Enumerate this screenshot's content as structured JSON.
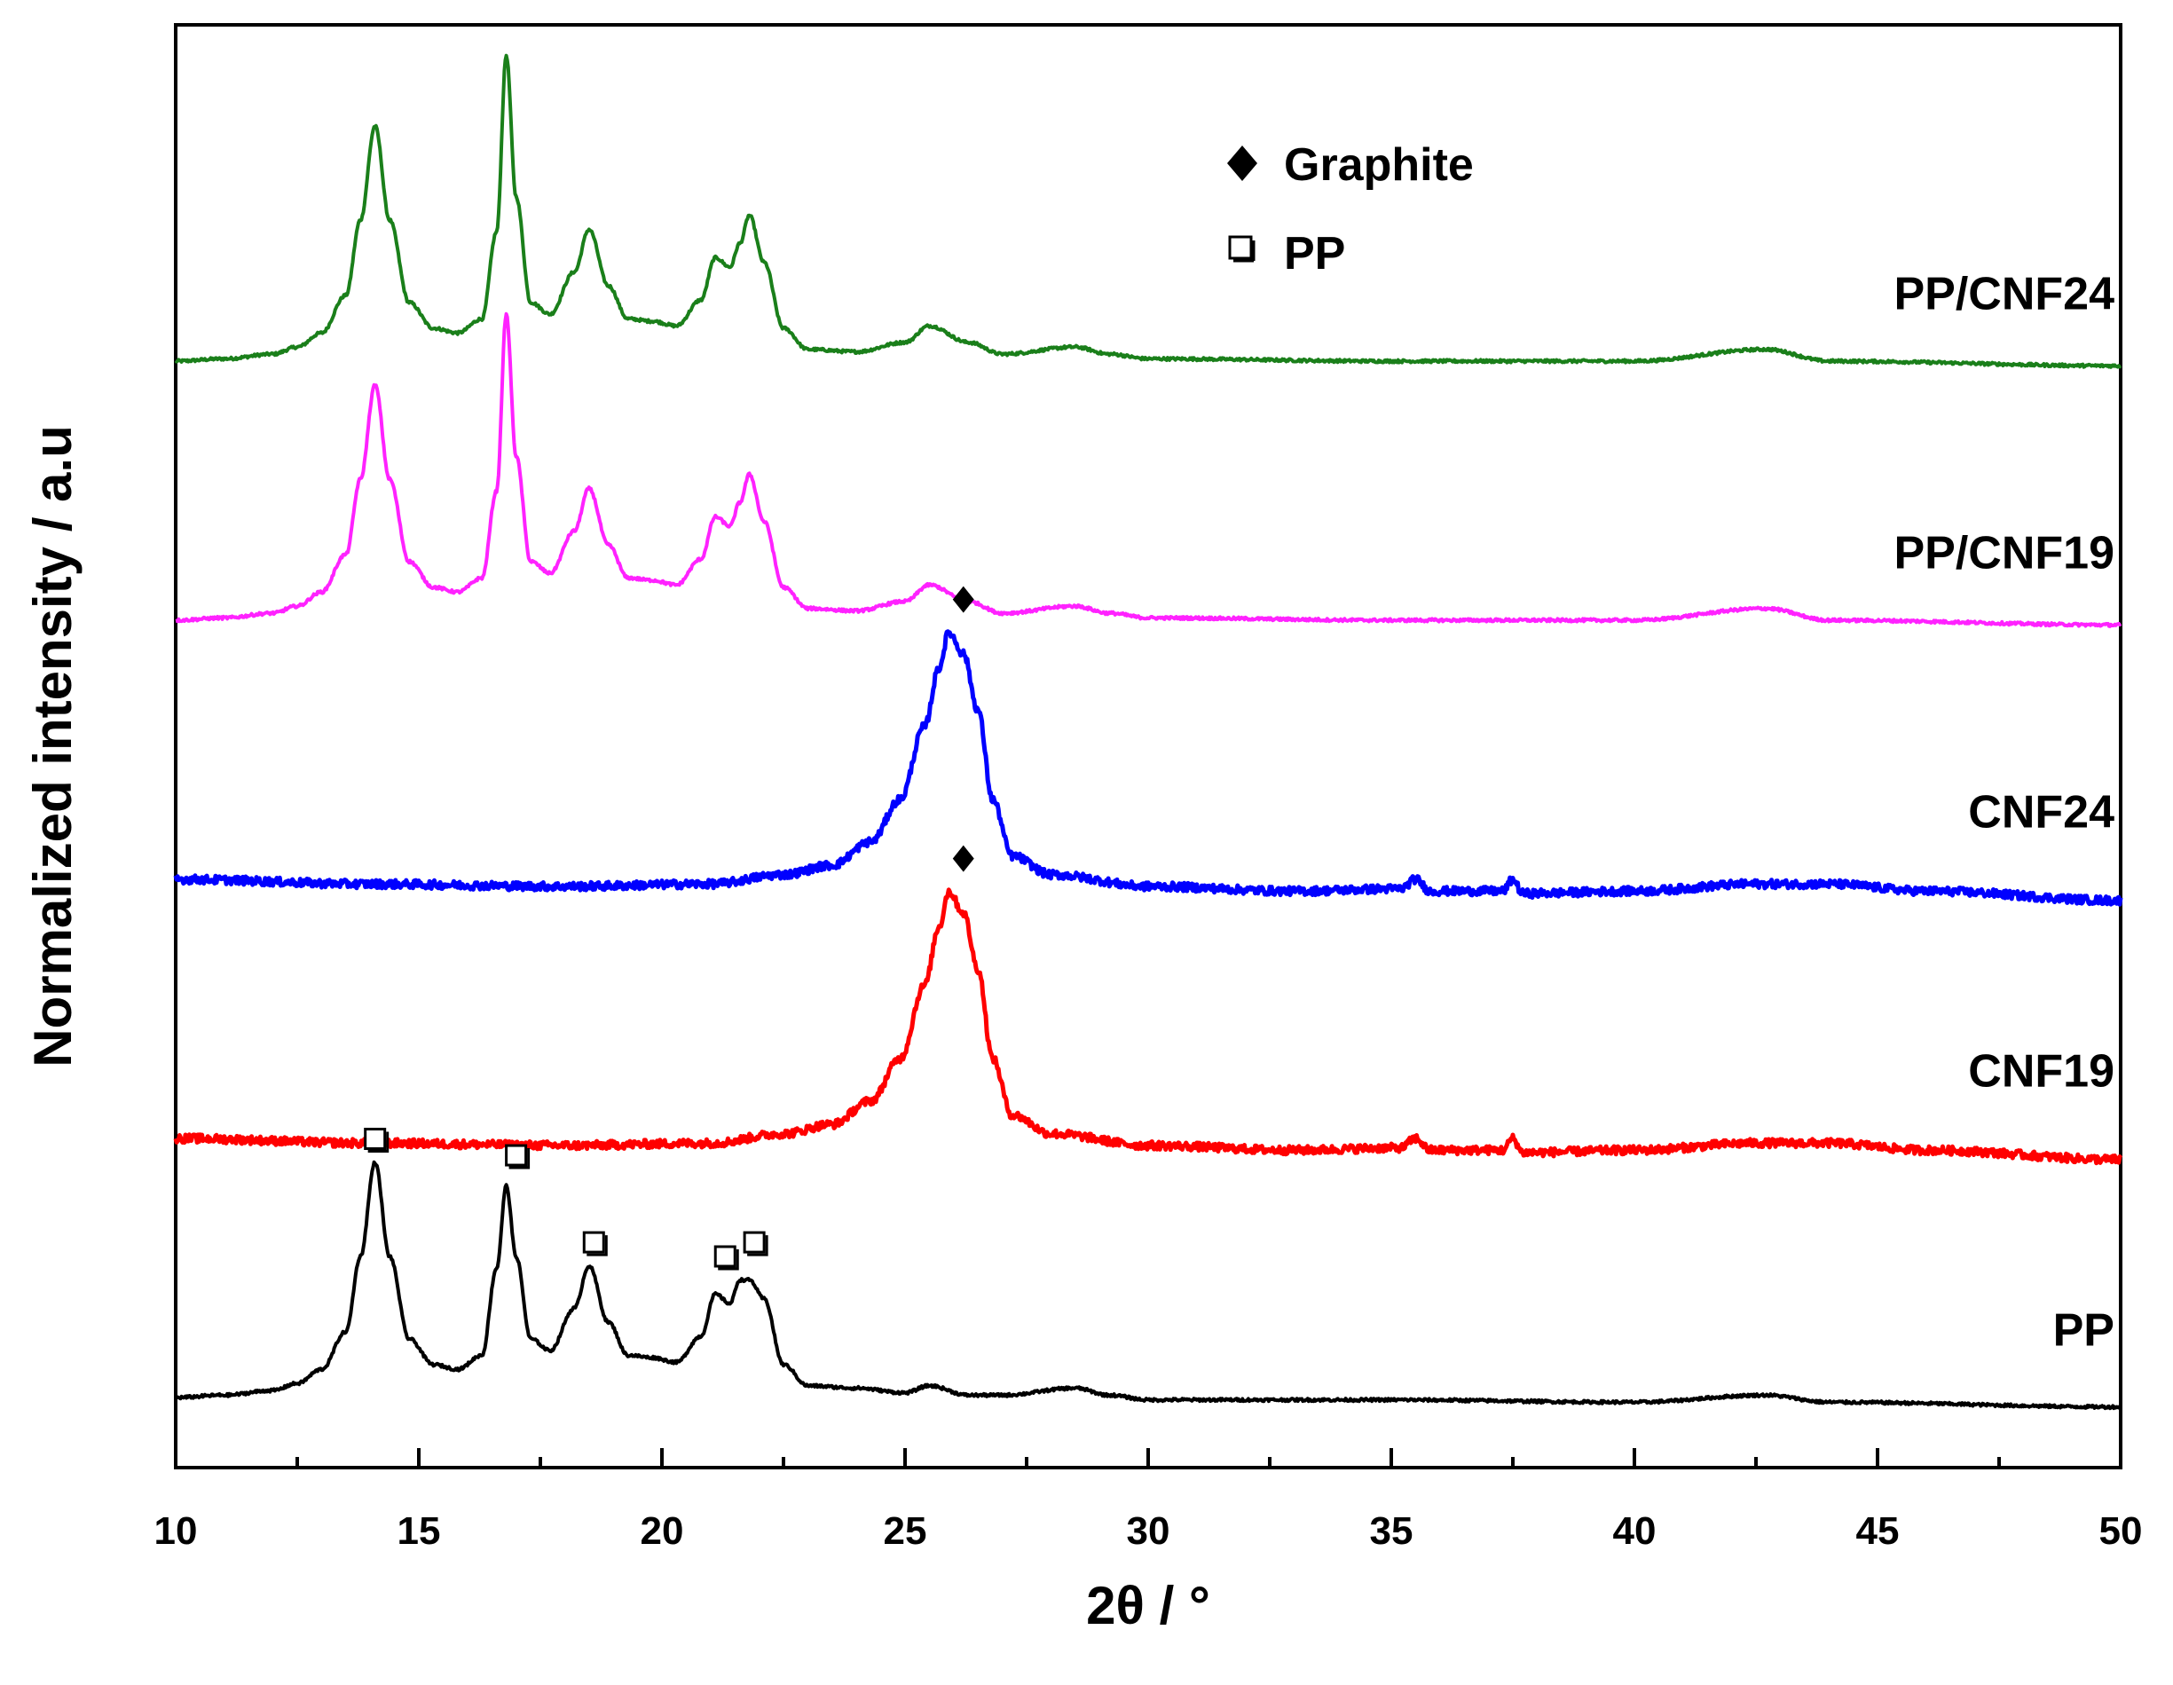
{
  "chart_data": {
    "type": "line",
    "title": "",
    "xlabel": "2θ / °",
    "ylabel": "Normalized intensity / a.u",
    "xlim": [
      10,
      50
    ],
    "xticks": [
      10,
      15,
      20,
      25,
      30,
      35,
      40,
      45,
      50
    ],
    "xtick_labels": [
      "10",
      "15",
      "20",
      "25",
      "30",
      "35",
      "40",
      "45",
      "50"
    ],
    "y_ticks_shown": false,
    "legend": {
      "placement": "top-center",
      "entries": [
        {
          "marker": "filled-diamond",
          "label": "Graphite"
        },
        {
          "marker": "open-square",
          "label": "PP"
        }
      ]
    },
    "series": [
      {
        "name": "PP/CNF24",
        "color": "#1a7f1a",
        "baseline_offset": 4.0,
        "points": [
          [
            10,
            0.0
          ],
          [
            11,
            0.01
          ],
          [
            12,
            0.03
          ],
          [
            12.5,
            0.06
          ],
          [
            13,
            0.12
          ],
          [
            13.5,
            0.28
          ],
          [
            13.8,
            0.6
          ],
          [
            14.1,
            1.0
          ],
          [
            14.4,
            0.6
          ],
          [
            14.8,
            0.25
          ],
          [
            15.3,
            0.14
          ],
          [
            15.8,
            0.12
          ],
          [
            16.3,
            0.18
          ],
          [
            16.6,
            0.55
          ],
          [
            16.8,
            1.3
          ],
          [
            17.0,
            0.7
          ],
          [
            17.3,
            0.25
          ],
          [
            17.7,
            0.2
          ],
          [
            18.2,
            0.38
          ],
          [
            18.5,
            0.56
          ],
          [
            18.9,
            0.32
          ],
          [
            19.3,
            0.18
          ],
          [
            19.8,
            0.17
          ],
          [
            20.3,
            0.15
          ],
          [
            20.8,
            0.26
          ],
          [
            21.1,
            0.44
          ],
          [
            21.4,
            0.4
          ],
          [
            21.6,
            0.5
          ],
          [
            21.8,
            0.62
          ],
          [
            22.1,
            0.42
          ],
          [
            22.5,
            0.14
          ],
          [
            23.0,
            0.05
          ],
          [
            24.0,
            0.04
          ],
          [
            25.0,
            0.08
          ],
          [
            25.5,
            0.15
          ],
          [
            26.3,
            0.08
          ],
          [
            27.0,
            0.03
          ],
          [
            28.5,
            0.06
          ],
          [
            29.2,
            0.03
          ],
          [
            30.0,
            0.01
          ],
          [
            35,
            0.0
          ],
          [
            40,
            0.0
          ],
          [
            42.7,
            0.05
          ],
          [
            44,
            0.0
          ],
          [
            50,
            -0.02
          ]
        ]
      },
      {
        "name": "PP/CNF19",
        "color": "#ff22ff",
        "baseline_offset": 3.0,
        "points": [
          [
            10,
            0.0
          ],
          [
            11,
            0.01
          ],
          [
            12,
            0.03
          ],
          [
            12.5,
            0.06
          ],
          [
            13,
            0.12
          ],
          [
            13.5,
            0.28
          ],
          [
            13.8,
            0.6
          ],
          [
            14.1,
            1.0
          ],
          [
            14.4,
            0.6
          ],
          [
            14.8,
            0.25
          ],
          [
            15.3,
            0.14
          ],
          [
            15.8,
            0.12
          ],
          [
            16.3,
            0.18
          ],
          [
            16.6,
            0.55
          ],
          [
            16.8,
            1.3
          ],
          [
            17.0,
            0.7
          ],
          [
            17.3,
            0.25
          ],
          [
            17.7,
            0.2
          ],
          [
            18.2,
            0.38
          ],
          [
            18.5,
            0.56
          ],
          [
            18.9,
            0.32
          ],
          [
            19.3,
            0.18
          ],
          [
            19.8,
            0.17
          ],
          [
            20.3,
            0.15
          ],
          [
            20.8,
            0.26
          ],
          [
            21.1,
            0.44
          ],
          [
            21.4,
            0.4
          ],
          [
            21.6,
            0.5
          ],
          [
            21.8,
            0.62
          ],
          [
            22.1,
            0.42
          ],
          [
            22.5,
            0.14
          ],
          [
            23.0,
            0.05
          ],
          [
            24.0,
            0.04
          ],
          [
            25.0,
            0.08
          ],
          [
            25.5,
            0.15
          ],
          [
            26.3,
            0.08
          ],
          [
            27.0,
            0.03
          ],
          [
            28.5,
            0.06
          ],
          [
            29.2,
            0.03
          ],
          [
            30.0,
            0.01
          ],
          [
            35,
            0.0
          ],
          [
            40,
            0.0
          ],
          [
            42.7,
            0.05
          ],
          [
            44,
            0.0
          ],
          [
            50,
            -0.02
          ]
        ]
      },
      {
        "name": "CNF24",
        "color": "#0000ff",
        "baseline_offset": 2.0,
        "points": [
          [
            10,
            0.0
          ],
          [
            14,
            -0.02
          ],
          [
            18,
            -0.03
          ],
          [
            21,
            -0.02
          ],
          [
            22.5,
            0.02
          ],
          [
            23.5,
            0.06
          ],
          [
            24.3,
            0.16
          ],
          [
            24.9,
            0.34
          ],
          [
            25.4,
            0.65
          ],
          [
            25.7,
            0.9
          ],
          [
            25.9,
            1.05
          ],
          [
            26.2,
            0.96
          ],
          [
            26.5,
            0.72
          ],
          [
            26.8,
            0.34
          ],
          [
            27.2,
            0.1
          ],
          [
            28.0,
            0.02
          ],
          [
            30,
            -0.03
          ],
          [
            33,
            -0.05
          ],
          [
            35.2,
            -0.04
          ],
          [
            35.5,
            0.0
          ],
          [
            35.8,
            -0.05
          ],
          [
            37.3,
            -0.05
          ],
          [
            37.5,
            0.0
          ],
          [
            37.7,
            -0.06
          ],
          [
            40,
            -0.05
          ],
          [
            42.5,
            -0.02
          ],
          [
            44,
            -0.02
          ],
          [
            46,
            -0.05
          ],
          [
            50,
            -0.09
          ]
        ]
      },
      {
        "name": "CNF19",
        "color": "#ff0000",
        "baseline_offset": 1.0,
        "points": [
          [
            10,
            0.0
          ],
          [
            14,
            -0.02
          ],
          [
            18,
            -0.03
          ],
          [
            21,
            -0.02
          ],
          [
            22.5,
            0.02
          ],
          [
            23.5,
            0.06
          ],
          [
            24.3,
            0.16
          ],
          [
            24.9,
            0.34
          ],
          [
            25.4,
            0.65
          ],
          [
            25.7,
            0.9
          ],
          [
            25.9,
            1.05
          ],
          [
            26.2,
            0.96
          ],
          [
            26.5,
            0.72
          ],
          [
            26.8,
            0.34
          ],
          [
            27.2,
            0.1
          ],
          [
            28.0,
            0.02
          ],
          [
            30,
            -0.03
          ],
          [
            33,
            -0.05
          ],
          [
            35.2,
            -0.04
          ],
          [
            35.5,
            0.0
          ],
          [
            35.8,
            -0.05
          ],
          [
            37.3,
            -0.05
          ],
          [
            37.5,
            0.0
          ],
          [
            37.7,
            -0.06
          ],
          [
            40,
            -0.05
          ],
          [
            42.5,
            -0.02
          ],
          [
            44,
            -0.02
          ],
          [
            46,
            -0.05
          ],
          [
            50,
            -0.09
          ]
        ]
      },
      {
        "name": "PP",
        "color": "#000000",
        "baseline_offset": 0.0,
        "points": [
          [
            10,
            0.0
          ],
          [
            11,
            0.01
          ],
          [
            12,
            0.03
          ],
          [
            12.5,
            0.06
          ],
          [
            13,
            0.12
          ],
          [
            13.5,
            0.28
          ],
          [
            13.8,
            0.6
          ],
          [
            14.1,
            1.0
          ],
          [
            14.4,
            0.6
          ],
          [
            14.8,
            0.25
          ],
          [
            15.3,
            0.14
          ],
          [
            15.8,
            0.12
          ],
          [
            16.3,
            0.18
          ],
          [
            16.6,
            0.55
          ],
          [
            16.8,
            0.9
          ],
          [
            17.0,
            0.6
          ],
          [
            17.3,
            0.25
          ],
          [
            17.7,
            0.2
          ],
          [
            18.2,
            0.38
          ],
          [
            18.5,
            0.56
          ],
          [
            18.9,
            0.32
          ],
          [
            19.3,
            0.18
          ],
          [
            19.8,
            0.17
          ],
          [
            20.3,
            0.15
          ],
          [
            20.8,
            0.26
          ],
          [
            21.1,
            0.44
          ],
          [
            21.4,
            0.4
          ],
          [
            21.6,
            0.5
          ],
          [
            21.8,
            0.5
          ],
          [
            22.1,
            0.42
          ],
          [
            22.5,
            0.14
          ],
          [
            23.0,
            0.05
          ],
          [
            24.0,
            0.04
          ],
          [
            25.0,
            0.02
          ],
          [
            25.5,
            0.05
          ],
          [
            26.3,
            0.01
          ],
          [
            27.0,
            0.01
          ],
          [
            28.5,
            0.04
          ],
          [
            29.2,
            0.01
          ],
          [
            30.0,
            -0.01
          ],
          [
            35,
            -0.01
          ],
          [
            40,
            -0.02
          ],
          [
            42.7,
            0.01
          ],
          [
            44,
            -0.02
          ],
          [
            50,
            -0.04
          ]
        ]
      }
    ],
    "annotations": [
      {
        "marker": "open-square",
        "series": "PP",
        "x": 14.1,
        "y": 1.1
      },
      {
        "marker": "open-square",
        "series": "PP",
        "x": 17.0,
        "y": 1.03
      },
      {
        "marker": "open-square",
        "series": "PP",
        "x": 18.6,
        "y": 0.66
      },
      {
        "marker": "open-square",
        "series": "PP",
        "x": 21.3,
        "y": 0.6
      },
      {
        "marker": "open-square",
        "series": "PP",
        "x": 21.9,
        "y": 0.66
      },
      {
        "marker": "filled-diamond",
        "series": "CNF19",
        "x": 26.2,
        "y": 1.19
      },
      {
        "marker": "filled-diamond",
        "series": "CNF24",
        "x": 26.2,
        "y": 1.19
      }
    ]
  }
}
